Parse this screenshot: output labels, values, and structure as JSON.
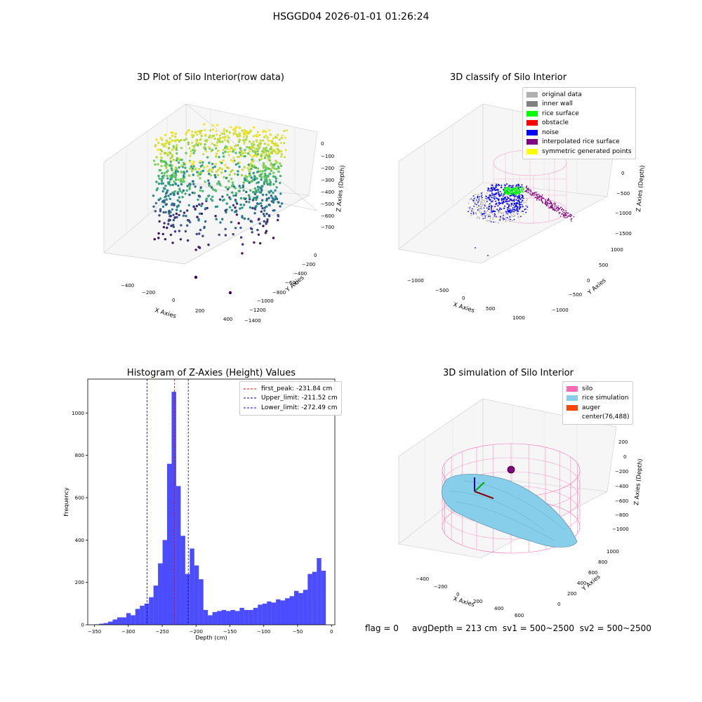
{
  "suptitle": "HSGGD04 2026-01-01 01:26:24",
  "panels": {
    "raw": {
      "title": "3D Plot of Silo Interior(row data)",
      "xlabel": "X Axies",
      "ylabel": "Y Axies",
      "zlabel": "Z Axies (Depth)",
      "xticks": [
        "−400",
        "−200",
        "0",
        "200",
        "400"
      ],
      "yticks": [
        "0",
        "−200",
        "−400",
        "−600",
        "−800",
        "−1000",
        "−1200",
        "−1400"
      ],
      "zticks": [
        "0",
        "−100",
        "−200",
        "−300",
        "−400",
        "−500",
        "−600",
        "−700"
      ]
    },
    "classify": {
      "title": "3D classify of Silo Interior",
      "xlabel": "X Axies",
      "ylabel": "Y Axies",
      "zlabel": "Z Axies (Depth)",
      "xticks": [
        "−1000",
        "−500",
        "0",
        "500",
        "1000"
      ],
      "yticks": [
        "1000",
        "500",
        "0",
        "−500",
        "−1000"
      ],
      "zticks": [
        "500",
        "0",
        "−500",
        "−1000",
        "−1500"
      ],
      "legend": [
        {
          "label": "original data",
          "color": "#b0b0b0"
        },
        {
          "label": "inner wall",
          "color": "#808080"
        },
        {
          "label": "rice surface",
          "color": "#00ff00"
        },
        {
          "label": "obstacle",
          "color": "#ff0000"
        },
        {
          "label": "noise",
          "color": "#0000ff"
        },
        {
          "label": "interpolated rice surface",
          "color": "#800080"
        },
        {
          "label": "symmetric generated points",
          "color": "#ffff00"
        }
      ]
    },
    "hist": {
      "title": "Histogram of Z-Axies (Height) Values",
      "xlabel": "Depth (cm)",
      "ylabel": "Frequency",
      "legend": [
        {
          "label": "first_peak: -231.84 cm",
          "color": "#ff0000"
        },
        {
          "label": "Upper_limit: -211.52 cm",
          "color": "#00008b"
        },
        {
          "label": "Lower_limit: -272.49 cm",
          "color": "#0000ff"
        }
      ]
    },
    "sim": {
      "title": "3D simulation of Silo Interior",
      "xlabel": "X Axies",
      "ylabel": "Y Axies",
      "zlabel": "Z Axies (Depth)",
      "xticks": [
        "−400",
        "−200",
        "0",
        "200",
        "400",
        "600"
      ],
      "yticks": [
        "1000",
        "800",
        "600",
        "400",
        "200",
        "0"
      ],
      "zticks": [
        "200",
        "0",
        "−200",
        "−400",
        "−600",
        "−800",
        "−1000"
      ],
      "legend": [
        {
          "label": "silo",
          "color": "#ff69b4"
        },
        {
          "label": "rice simulation",
          "color": "#87ceeb"
        },
        {
          "label": "auger",
          "color": "#ff4500"
        },
        {
          "label": "center(76,488)",
          "color": ""
        }
      ]
    }
  },
  "status": {
    "flag": "flag = 0",
    "avg": "avgDepth = 213 cm",
    "sv1": "sv1 = 500~2500",
    "sv2": "sv2 = 500~2500"
  },
  "chart_data": {
    "type": "bar",
    "title": "Histogram of Z-Axies (Height) Values",
    "xlabel": "Depth (cm)",
    "ylabel": "Frequency",
    "xlim": [
      -360,
      5
    ],
    "ylim": [
      0,
      1160
    ],
    "xticks": [
      -350,
      -300,
      -250,
      -200,
      -150,
      -100,
      -50,
      0
    ],
    "yticks": [
      0,
      200,
      400,
      600,
      800,
      1000
    ],
    "bar_color": "#0000ff",
    "bin_width": 6.7,
    "bin_starts": [
      -350.0,
      -343.3,
      -336.6,
      -329.9,
      -323.2,
      -316.5,
      -309.8,
      -303.1,
      -296.4,
      -289.7,
      -283.0,
      -276.3,
      -269.6,
      -262.9,
      -256.2,
      -249.5,
      -242.8,
      -236.1,
      -229.4,
      -222.7,
      -216.0,
      -209.3,
      -202.6,
      -195.9,
      -189.2,
      -182.5,
      -175.8,
      -169.1,
      -162.4,
      -155.7,
      -149.0,
      -142.3,
      -135.6,
      -128.9,
      -122.2,
      -115.5,
      -108.8,
      -102.1,
      -95.4,
      -88.7,
      -82.0,
      -75.3,
      -68.6,
      -61.9,
      -55.2,
      -48.5,
      -41.8,
      -35.1,
      -28.4,
      -21.7,
      -15.0
    ],
    "counts": [
      2,
      5,
      8,
      15,
      25,
      35,
      35,
      55,
      45,
      75,
      90,
      100,
      130,
      185,
      290,
      400,
      760,
      1100,
      655,
      420,
      240,
      360,
      280,
      215,
      70,
      45,
      60,
      65,
      70,
      65,
      70,
      65,
      80,
      70,
      70,
      80,
      95,
      100,
      110,
      105,
      120,
      115,
      125,
      135,
      160,
      150,
      165,
      240,
      250,
      315,
      255
    ],
    "lines": [
      {
        "name": "first_peak: -231.84 cm",
        "x": -231.84,
        "color": "#ff0000"
      },
      {
        "name": "Upper_limit: -211.52 cm",
        "x": -211.52,
        "color": "#00008b"
      },
      {
        "name": "Lower_limit: -272.49 cm",
        "x": -272.49,
        "color": "#0000ff"
      }
    ]
  }
}
